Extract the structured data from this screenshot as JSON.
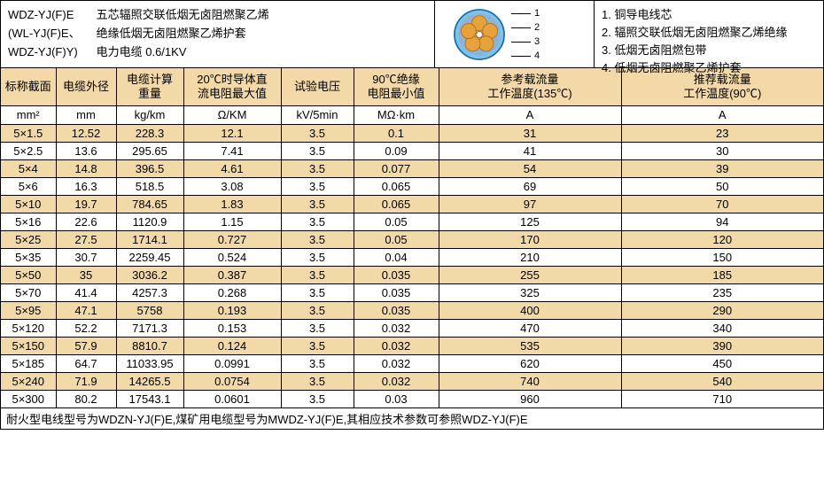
{
  "header": {
    "models": [
      "WDZ-YJ(F)E",
      "(WL-YJ(F)E、",
      "WDZ-YJ(F)Y)"
    ],
    "desc": [
      "五芯辐照交联低烟无卤阻燃聚乙烯",
      "绝缘低烟无卤阻燃聚乙烯护套",
      "电力电缆        0.6/1KV"
    ],
    "legend": [
      "1. 铜导电线芯",
      "2. 辐照交联低烟无卤阻燃聚乙烯绝缘",
      "3. 低烟无卤阻燃包带",
      "4. 低烟无卤阻燃聚乙烯护套"
    ],
    "leader_nums": [
      "1",
      "2",
      "3",
      "4"
    ]
  },
  "diagram": {
    "outer_fill": "#7cc4ee",
    "outer_stroke": "#1a6aa3",
    "ring_fill": "#8db4d6",
    "core_fill": "#e8a23c",
    "core_stroke": "#b06c12",
    "center_fill": "#ffffff"
  },
  "columns": {
    "headers": [
      "标称截面",
      "电缆外径",
      "电缆计算<br>重量",
      "20℃时导体直<br>流电阻最大值",
      "试验电压",
      "90℃绝缘<br>电阻最小值",
      "参考载流量<br>工作温度(135℃)",
      "推荐载流量<br>工作温度(90℃)"
    ],
    "units": [
      "mm²",
      "mm",
      "kg/km",
      "Ω/KM",
      "kV/5min",
      "MΩ·km",
      "A",
      "A"
    ]
  },
  "rows": [
    [
      "5×1.5",
      "12.52",
      "228.3",
      "12.1",
      "3.5",
      "0.1",
      "31",
      "23"
    ],
    [
      "5×2.5",
      "13.6",
      "295.65",
      "7.41",
      "3.5",
      "0.09",
      "41",
      "30"
    ],
    [
      "5×4",
      "14.8",
      "396.5",
      "4.61",
      "3.5",
      "0.077",
      "54",
      "39"
    ],
    [
      "5×6",
      "16.3",
      "518.5",
      "3.08",
      "3.5",
      "0.065",
      "69",
      "50"
    ],
    [
      "5×10",
      "19.7",
      "784.65",
      "1.83",
      "3.5",
      "0.065",
      "97",
      "70"
    ],
    [
      "5×16",
      "22.6",
      "1120.9",
      "1.15",
      "3.5",
      "0.05",
      "125",
      "94"
    ],
    [
      "5×25",
      "27.5",
      "1714.1",
      "0.727",
      "3.5",
      "0.05",
      "170",
      "120"
    ],
    [
      "5×35",
      "30.7",
      "2259.45",
      "0.524",
      "3.5",
      "0.04",
      "210",
      "150"
    ],
    [
      "5×50",
      "35",
      "3036.2",
      "0.387",
      "3.5",
      "0.035",
      "255",
      "185"
    ],
    [
      "5×70",
      "41.4",
      "4257.3",
      "0.268",
      "3.5",
      "0.035",
      "325",
      "235"
    ],
    [
      "5×95",
      "47.1",
      "5758",
      "0.193",
      "3.5",
      "0.035",
      "400",
      "290"
    ],
    [
      "5×120",
      "52.2",
      "7171.3",
      "0.153",
      "3.5",
      "0.032",
      "470",
      "340"
    ],
    [
      "5×150",
      "57.9",
      "8810.7",
      "0.124",
      "3.5",
      "0.032",
      "535",
      "390"
    ],
    [
      "5×185",
      "64.7",
      "11033.95",
      "0.0991",
      "3.5",
      "0.032",
      "620",
      "450"
    ],
    [
      "5×240",
      "71.9",
      "14265.5",
      "0.0754",
      "3.5",
      "0.032",
      "740",
      "540"
    ],
    [
      "5×300",
      "80.2",
      "17543.1",
      "0.0601",
      "3.5",
      "0.03",
      "960",
      "710"
    ]
  ],
  "footnote": "耐火型电线型号为WDZN-YJ(F)E,煤矿用电缆型号为MWDZ-YJ(F)E,其相应技术参数可参照WDZ-YJ(F)E",
  "colors": {
    "header_bg": "#f3d8a8",
    "row_bg": "#f3d8a8",
    "border": "#000000"
  }
}
